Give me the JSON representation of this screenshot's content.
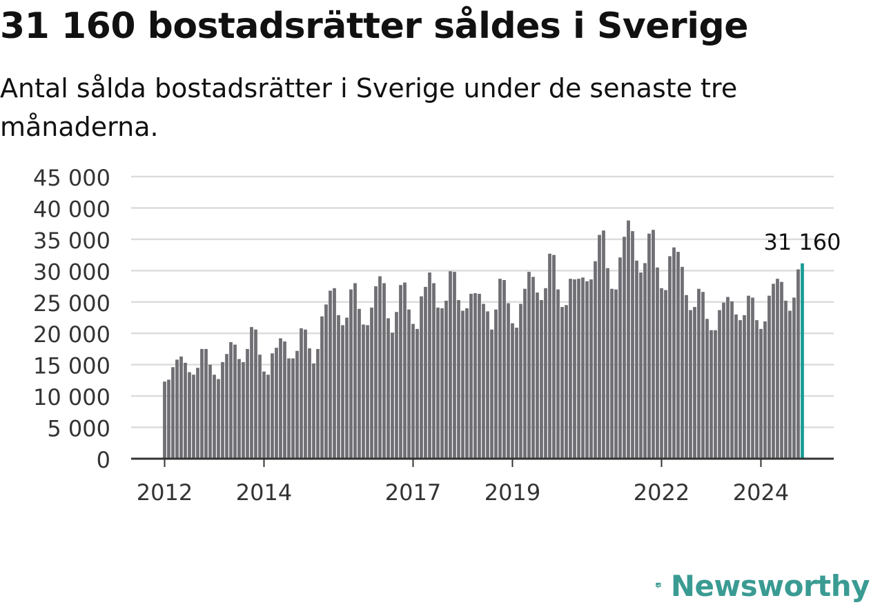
{
  "chart_data": {
    "type": "bar",
    "title": "31 160 bostadsrätter såldes i Sverige",
    "subtitle": "Antal sålda bostadsrätter i Sverige under de senaste tre månaderna.",
    "start": "2012-01",
    "x_tick_labels": [
      "2012",
      "2014",
      "2017",
      "2019",
      "2022",
      "2024"
    ],
    "y_tick_labels": [
      "0",
      "5 000",
      "10 000",
      "15 000",
      "20 000",
      "25 000",
      "30 000",
      "35 000",
      "40 000",
      "45 000"
    ],
    "ylim": [
      0,
      45000
    ],
    "grid": true,
    "highlight_label": "31 160",
    "highlight_color": "#1a9c96",
    "bar_color": "#6f6f74",
    "values": [
      12300,
      12600,
      14600,
      15800,
      16300,
      15300,
      13800,
      13400,
      14500,
      17500,
      17500,
      15000,
      13400,
      12700,
      15400,
      16700,
      18600,
      18200,
      15900,
      15400,
      17500,
      21000,
      20600,
      16600,
      13900,
      13400,
      16800,
      17700,
      19200,
      18700,
      16000,
      16000,
      17200,
      20800,
      20600,
      17600,
      15200,
      17500,
      22700,
      24600,
      26800,
      27200,
      22900,
      21300,
      22500,
      27000,
      28000,
      23900,
      21400,
      21300,
      24100,
      27500,
      29100,
      28000,
      22400,
      20100,
      23400,
      27700,
      28100,
      23800,
      21500,
      20700,
      25900,
      27400,
      29700,
      28000,
      24100,
      24000,
      25200,
      29900,
      29800,
      25300,
      23600,
      24000,
      26300,
      26400,
      26300,
      24700,
      23500,
      20600,
      23800,
      28700,
      28500,
      24800,
      21600,
      20900,
      24700,
      27100,
      29800,
      29000,
      26500,
      25300,
      27200,
      32700,
      32500,
      27000,
      24200,
      24500,
      28700,
      28600,
      28700,
      28900,
      28300,
      28600,
      31500,
      35700,
      36400,
      30400,
      27100,
      27000,
      32100,
      35400,
      38000,
      36300,
      31600,
      29700,
      31200,
      35900,
      36500,
      30500,
      27200,
      26900,
      32300,
      33700,
      33000,
      30600,
      26100,
      23700,
      24200,
      27100,
      26600,
      22300,
      20500,
      20500,
      23700,
      24900,
      25800,
      25100,
      23000,
      22100,
      22900,
      26000,
      25700,
      22100,
      20700,
      21900,
      26000,
      27900,
      28700,
      28200,
      25200,
      23600,
      25700,
      30200,
      31160
    ]
  },
  "brand": {
    "name": "Newsworthy",
    "color": "#3a9b93"
  }
}
